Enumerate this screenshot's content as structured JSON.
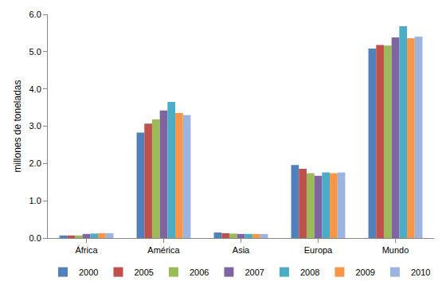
{
  "chart_data": {
    "type": "bar",
    "y_label": "millones de toneladas",
    "categories": [
      "África",
      "América",
      "Asia",
      "Europa",
      "Mundo"
    ],
    "series": [
      {
        "name": "2000",
        "color": "#4F81BD",
        "values": [
          0.07,
          2.83,
          0.15,
          1.96,
          5.08
        ]
      },
      {
        "name": "2005",
        "color": "#C0504D",
        "values": [
          0.07,
          3.07,
          0.13,
          1.86,
          5.18
        ]
      },
      {
        "name": "2006",
        "color": "#9BBB59",
        "values": [
          0.07,
          3.18,
          0.12,
          1.74,
          5.16
        ]
      },
      {
        "name": "2007",
        "color": "#8064A2",
        "values": [
          0.11,
          3.42,
          0.11,
          1.67,
          5.38
        ]
      },
      {
        "name": "2008",
        "color": "#4BACC6",
        "values": [
          0.12,
          3.65,
          0.11,
          1.76,
          5.68
        ]
      },
      {
        "name": "2009",
        "color": "#F79646",
        "values": [
          0.13,
          3.35,
          0.11,
          1.74,
          5.36
        ]
      },
      {
        "name": "2010",
        "color": "#9DB3E0",
        "values": [
          0.13,
          3.3,
          0.11,
          1.76,
          5.4
        ]
      }
    ],
    "ylim": [
      0,
      6
    ],
    "yticks": [
      {
        "value": 0,
        "label": "0.0"
      },
      {
        "value": 1,
        "label": "1.0"
      },
      {
        "value": 2,
        "label": "2.0"
      },
      {
        "value": 3,
        "label": "3.0"
      },
      {
        "value": 4,
        "label": "4.0"
      },
      {
        "value": 5,
        "label": "5.0"
      },
      {
        "value": 6,
        "label": "6.0"
      }
    ],
    "grid": false,
    "legend": "bottom"
  }
}
